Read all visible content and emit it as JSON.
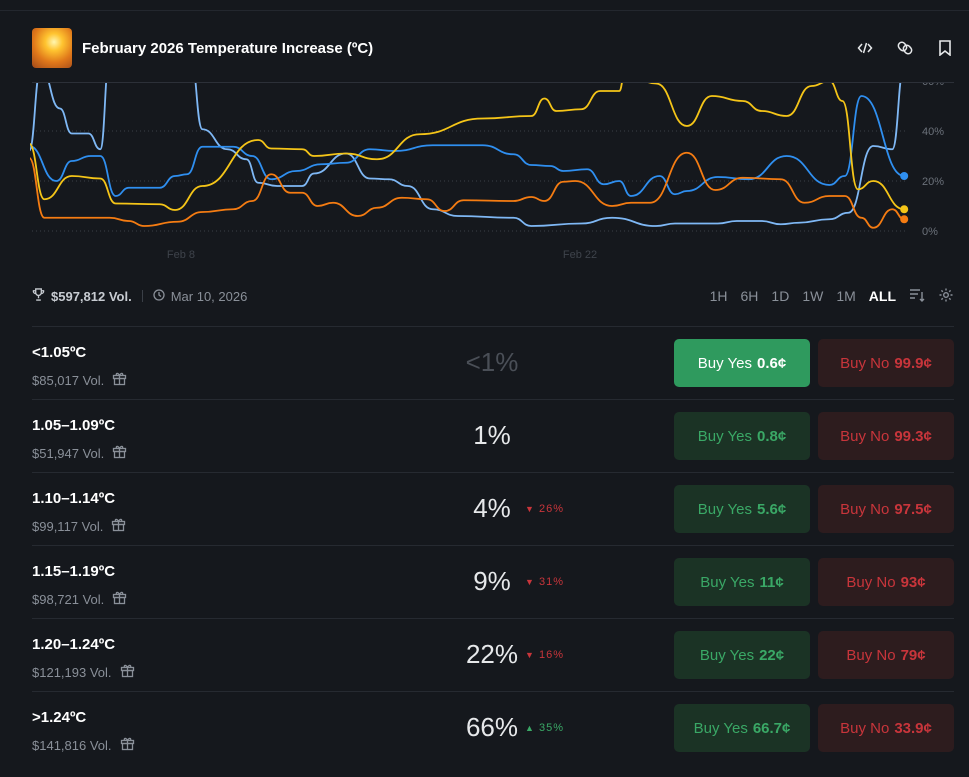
{
  "header": {
    "title": "February 2026 Temperature Increase (ºC)",
    "icons": [
      "embed-code-icon",
      "link-icon",
      "bookmark-icon"
    ]
  },
  "meta": {
    "volume": "$597,812 Vol.",
    "date": "Mar 10, 2026",
    "ranges": [
      "1H",
      "6H",
      "1D",
      "1W",
      "1M",
      "ALL"
    ],
    "active_range": "ALL"
  },
  "chart_data": {
    "type": "line",
    "x_ticks": [
      "Feb 8",
      "Feb 22"
    ],
    "y_ticks": [
      "0%",
      "20%",
      "40%",
      "60%"
    ],
    "ylim": [
      0,
      59
    ],
    "grid": true,
    "series": [
      {
        "color": "#7fb8f5",
        "points": [
          [
            "2026-02-02T16",
            32
          ],
          [
            "2026-02-03T02",
            65
          ],
          [
            "2026-02-03T18",
            49
          ],
          [
            "2026-02-04T04",
            39
          ],
          [
            "2026-02-04T18",
            39
          ],
          [
            "2026-02-05T04",
            32.7
          ],
          [
            "2026-02-05T12",
            70
          ],
          [
            "2026-02-08T08",
            70
          ],
          [
            "2026-02-08T18",
            40.7
          ],
          [
            "2026-02-09T15",
            32.7
          ],
          [
            "2026-02-10T07",
            28.7
          ],
          [
            "2026-02-10T17",
            19.3
          ],
          [
            "2026-02-11T09",
            18
          ],
          [
            "2026-02-12T06",
            18
          ],
          [
            "2026-02-12T16",
            23
          ],
          [
            "2026-02-13T19",
            31
          ],
          [
            "2026-02-14T15",
            21
          ],
          [
            "2026-02-15T07",
            20.7
          ],
          [
            "2026-02-15T23",
            18
          ],
          [
            "2026-02-16T20",
            8.7
          ],
          [
            "2026-02-17T17",
            6
          ],
          [
            "2026-02-19T16",
            5.3
          ],
          [
            "2026-02-20T07",
            2
          ],
          [
            "2026-02-22T01",
            3
          ],
          [
            "2026-02-23T03",
            5.3
          ],
          [
            "2026-02-24T16",
            2
          ],
          [
            "2026-02-25T08",
            3
          ],
          [
            "2026-02-26T20",
            3
          ],
          [
            "2026-02-27T12",
            4
          ],
          [
            "2026-02-28T09",
            4
          ],
          [
            "2026-03-01T01",
            2.7
          ],
          [
            "2026-03-01T16",
            3.3
          ],
          [
            "2026-03-02T18",
            4.7
          ],
          [
            "2026-03-03T10",
            7.3
          ],
          [
            "2026-03-04T07",
            34
          ],
          [
            "2026-03-04T23",
            32.7
          ],
          [
            "2026-03-05T09",
            66
          ]
        ]
      },
      {
        "color": "#2f8ff0",
        "points": [
          [
            "2026-02-02T16",
            34
          ],
          [
            "2026-02-03T15",
            20
          ],
          [
            "2026-02-04T04",
            28
          ],
          [
            "2026-02-04T20",
            30
          ],
          [
            "2026-02-05T04",
            30
          ],
          [
            "2026-02-05T17",
            14
          ],
          [
            "2026-02-06T04",
            17.3
          ],
          [
            "2026-02-07T06",
            17.3
          ],
          [
            "2026-02-07T19",
            22
          ],
          [
            "2026-02-08T05",
            22.7
          ],
          [
            "2026-02-08T18",
            33.7
          ],
          [
            "2026-02-09T20",
            33.7
          ],
          [
            "2026-02-10T12",
            30
          ],
          [
            "2026-02-11T04",
            20.7
          ],
          [
            "2026-02-12T01",
            24
          ],
          [
            "2026-02-12T22",
            26.7
          ],
          [
            "2026-02-13T19",
            27.3
          ],
          [
            "2026-02-14T15",
            32.7
          ],
          [
            "2026-02-15T12",
            32
          ],
          [
            "2026-02-16T20",
            34.3
          ],
          [
            "2026-02-18T14",
            34.3
          ],
          [
            "2026-02-19T16",
            30.7
          ],
          [
            "2026-02-20T07",
            26.4
          ],
          [
            "2026-02-20T23",
            26
          ],
          [
            "2026-02-21T10",
            24
          ],
          [
            "2026-02-22T06",
            24.7
          ],
          [
            "2026-02-22T20",
            18.7
          ],
          [
            "2026-02-23T09",
            20
          ],
          [
            "2026-02-23T19",
            14
          ],
          [
            "2026-02-24T19",
            22
          ],
          [
            "2026-02-25T08",
            14.7
          ],
          [
            "2026-02-25T18",
            16
          ],
          [
            "2026-02-26T20",
            21.6
          ],
          [
            "2026-02-27T22",
            20.7
          ],
          [
            "2026-03-01T06",
            30
          ],
          [
            "2026-03-02T18",
            18.4
          ],
          [
            "2026-03-03T07",
            22
          ],
          [
            "2026-03-03T21",
            54
          ],
          [
            "2026-03-05T09",
            22
          ]
        ]
      },
      {
        "color": "#f5c518",
        "points": [
          [
            "2026-02-02T16",
            35
          ],
          [
            "2026-02-03T05",
            12.7
          ],
          [
            "2026-02-04T04",
            22
          ],
          [
            "2026-02-05T04",
            21
          ],
          [
            "2026-02-05T17",
            11
          ],
          [
            "2026-02-07T06",
            10.7
          ],
          [
            "2026-02-07T19",
            8.4
          ],
          [
            "2026-02-08T18",
            18
          ],
          [
            "2026-02-10T17",
            36.4
          ],
          [
            "2026-02-11T04",
            33
          ],
          [
            "2026-02-12T06",
            32.7
          ],
          [
            "2026-02-12T16",
            30
          ],
          [
            "2026-02-13T19",
            31
          ],
          [
            "2026-02-14T21",
            28.7
          ],
          [
            "2026-02-16T09",
            38.7
          ],
          [
            "2026-02-18T14",
            45
          ],
          [
            "2026-02-20T07",
            46
          ],
          [
            "2026-02-20T18",
            53
          ],
          [
            "2026-02-21T04",
            48
          ],
          [
            "2026-02-22T01",
            48.7
          ],
          [
            "2026-02-22T17",
            56
          ],
          [
            "2026-02-23T09",
            56
          ],
          [
            "2026-02-23T14",
            64
          ],
          [
            "2026-02-24T16",
            59
          ],
          [
            "2026-02-25T18",
            42
          ],
          [
            "2026-02-26T15",
            54
          ],
          [
            "2026-02-27T17",
            52
          ],
          [
            "2026-02-28T09",
            48
          ],
          [
            "2026-03-01T06",
            46
          ],
          [
            "2026-03-02T03",
            58
          ],
          [
            "2026-03-02T18",
            60
          ],
          [
            "2026-03-03T05",
            52
          ],
          [
            "2026-03-03T18",
            16.7
          ],
          [
            "2026-03-04T07",
            20
          ],
          [
            "2026-03-05T09",
            8.7
          ]
        ]
      },
      {
        "color": "#f57c12",
        "points": [
          [
            "2026-02-02T16",
            29.3
          ],
          [
            "2026-02-03T05",
            5.3
          ],
          [
            "2026-02-05T12",
            5.3
          ],
          [
            "2026-02-06T04",
            4
          ],
          [
            "2026-02-06T17",
            2
          ],
          [
            "2026-02-07T21",
            3.7
          ],
          [
            "2026-02-08T18",
            7.6
          ],
          [
            "2026-02-09T20",
            8.7
          ],
          [
            "2026-02-10T12",
            12
          ],
          [
            "2026-02-11T04",
            22.7
          ],
          [
            "2026-02-11T20",
            15.3
          ],
          [
            "2026-02-12T06",
            15.3
          ],
          [
            "2026-02-12T19",
            10
          ],
          [
            "2026-02-13T08",
            11.3
          ],
          [
            "2026-02-14T05",
            6
          ],
          [
            "2026-02-14T21",
            9.3
          ],
          [
            "2026-02-15T18",
            13.3
          ],
          [
            "2026-02-16T15",
            12.7
          ],
          [
            "2026-02-17T06",
            8
          ],
          [
            "2026-02-17T22",
            12.3
          ],
          [
            "2026-02-19T16",
            12
          ],
          [
            "2026-02-20T07",
            13.6
          ],
          [
            "2026-02-20T18",
            12
          ],
          [
            "2026-02-21T10",
            19.7
          ],
          [
            "2026-02-21T20",
            20
          ],
          [
            "2026-02-23T03",
            10
          ],
          [
            "2026-02-23T19",
            11.3
          ],
          [
            "2026-02-24T11",
            11.3
          ],
          [
            "2026-02-25T18",
            31.3
          ],
          [
            "2026-02-26T18",
            16.4
          ],
          [
            "2026-02-27T17",
            21.3
          ],
          [
            "2026-03-01T01",
            20.7
          ],
          [
            "2026-03-01T21",
            11.3
          ],
          [
            "2026-03-02T18",
            14
          ],
          [
            "2026-03-03T07",
            14
          ],
          [
            "2026-03-03T21",
            5.3
          ],
          [
            "2026-03-04T07",
            1.3
          ],
          [
            "2026-03-04T23",
            8.7
          ],
          [
            "2026-03-05T09",
            4.7
          ]
        ]
      }
    ]
  },
  "outcomes": [
    {
      "name": "<1.05ºC",
      "volume": "$85,017 Vol.",
      "chance": "<1%",
      "delta": "",
      "delta_dir": "",
      "yes": "0.6¢",
      "no": "99.9¢"
    },
    {
      "name": "1.05–1.09ºC",
      "volume": "$51,947 Vol.",
      "chance": "1%",
      "delta": "",
      "delta_dir": "",
      "yes": "0.8¢",
      "no": "99.3¢"
    },
    {
      "name": "1.10–1.14ºC",
      "volume": "$99,117 Vol.",
      "chance": "4%",
      "delta": "26%",
      "delta_dir": "down",
      "yes": "5.6¢",
      "no": "97.5¢"
    },
    {
      "name": "1.15–1.19ºC",
      "volume": "$98,721 Vol.",
      "chance": "9%",
      "delta": "31%",
      "delta_dir": "down",
      "yes": "11¢",
      "no": "93¢"
    },
    {
      "name": "1.20–1.24ºC",
      "volume": "$121,193 Vol.",
      "chance": "22%",
      "delta": "16%",
      "delta_dir": "down",
      "yes": "22¢",
      "no": "79¢"
    },
    {
      "name": ">1.24ºC",
      "volume": "$141,816 Vol.",
      "chance": "66%",
      "delta": "35%",
      "delta_dir": "up",
      "yes": "66.7¢",
      "no": "33.9¢"
    }
  ],
  "labels": {
    "buy_yes": "Buy Yes",
    "buy_no": "Buy No"
  },
  "colors": {
    "up": "#3aa866",
    "down": "#c8353b",
    "yes_active": "#2f9a5e"
  }
}
